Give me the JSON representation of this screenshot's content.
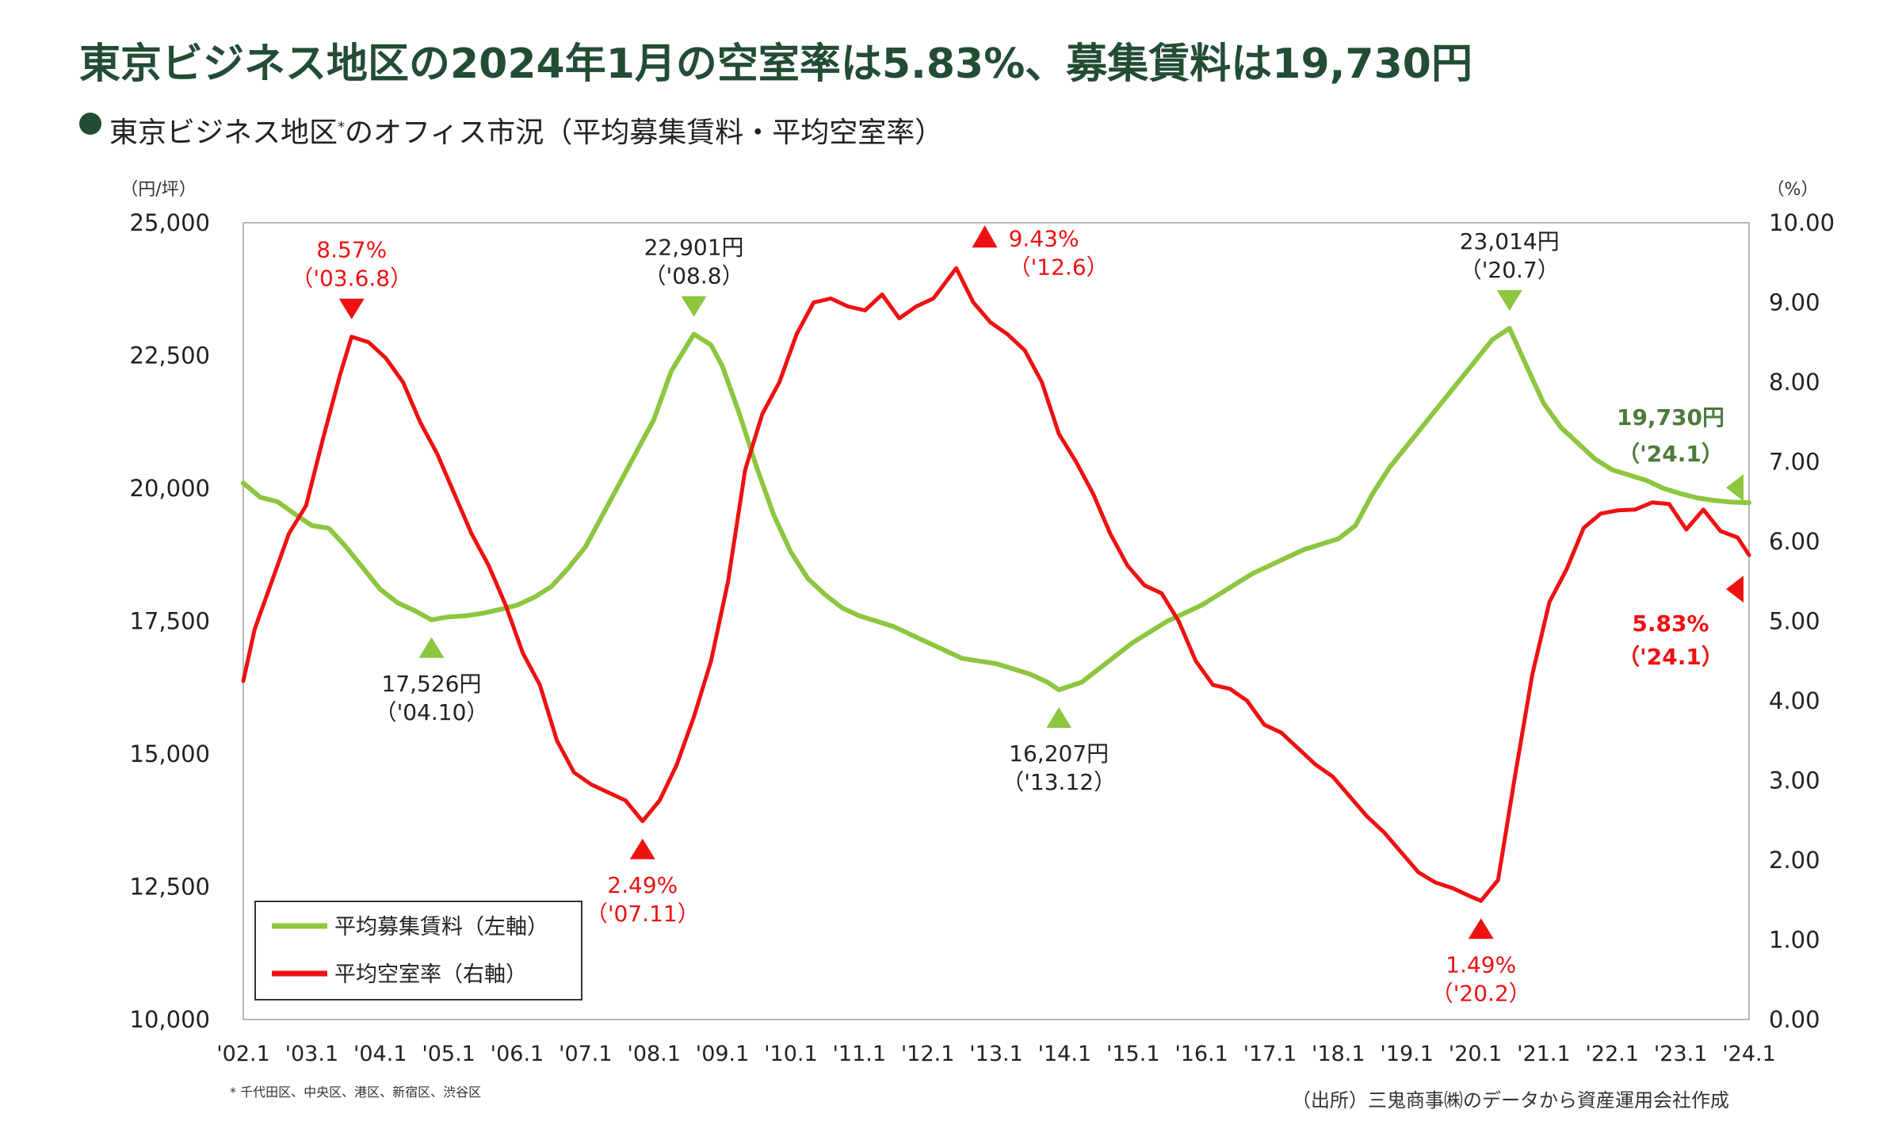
{
  "header": {
    "title": "東京ビジネス地区の2024年1月の空室率は5.83%、募集賃料は19,730円",
    "subtitle_pre": "東京ビジネス地区",
    "subtitle_mark": "*",
    "subtitle_post": "のオフィス市況（平均募集賃料・平均空室率）"
  },
  "footnote": "* 千代田区、中央区、港区、新宿区、渋谷区",
  "source": "（出所）三鬼商事㈱のデータから資産運用会社作成",
  "colors": {
    "rent": "#8dc63f",
    "vacancy": "#ee1111",
    "title": "#234c34",
    "rent_label": "#4e7a3a"
  },
  "chart_data": {
    "type": "line",
    "left_unit": "（円/坪）",
    "right_unit": "（%）",
    "ylim_left": [
      10000,
      25000
    ],
    "ylim_right": [
      0,
      10
    ],
    "left_ticks": [
      "25,000",
      "22,500",
      "20,000",
      "17,500",
      "15,000",
      "12,500",
      "10,000"
    ],
    "right_ticks": [
      "10.00",
      "9.00",
      "8.00",
      "7.00",
      "6.00",
      "5.00",
      "4.00",
      "3.00",
      "2.00",
      "1.00",
      "0.00"
    ],
    "x_range": [
      "2002-01",
      "2024-01"
    ],
    "x_ticks": [
      "'02.1",
      "'03.1",
      "'04.1",
      "'05.1",
      "'06.1",
      "'07.1",
      "'08.1",
      "'09.1",
      "'10.1",
      "'11.1",
      "'12.1",
      "'13.1",
      "'14.1",
      "'15.1",
      "'16.1",
      "'17.1",
      "'18.1",
      "'19.1",
      "'20.1",
      "'21.1",
      "'22.1",
      "'23.1",
      "'24.1"
    ],
    "legend": [
      {
        "label": "平均募集賃料（左軸）"
      },
      {
        "label": "平均空室率（右軸）"
      }
    ],
    "series": [
      {
        "name": "平均募集賃料（左軸）",
        "axis": "left",
        "points": [
          [
            "2002-01",
            20100
          ],
          [
            "2002-04",
            19830
          ],
          [
            "2002-07",
            19750
          ],
          [
            "2002-10",
            19520
          ],
          [
            "2003-01",
            19300
          ],
          [
            "2003-04",
            19250
          ],
          [
            "2003-07",
            18900
          ],
          [
            "2003-10",
            18500
          ],
          [
            "2004-01",
            18100
          ],
          [
            "2004-04",
            17850
          ],
          [
            "2004-07",
            17700
          ],
          [
            "2004-10",
            17526
          ],
          [
            "2005-01",
            17580
          ],
          [
            "2005-04",
            17600
          ],
          [
            "2005-07",
            17650
          ],
          [
            "2005-10",
            17720
          ],
          [
            "2006-01",
            17800
          ],
          [
            "2006-04",
            17950
          ],
          [
            "2006-07",
            18150
          ],
          [
            "2006-10",
            18500
          ],
          [
            "2007-01",
            18900
          ],
          [
            "2007-04",
            19500
          ],
          [
            "2007-07",
            20100
          ],
          [
            "2007-10",
            20700
          ],
          [
            "2008-01",
            21300
          ],
          [
            "2008-04",
            22200
          ],
          [
            "2008-08",
            22901
          ],
          [
            "2008-11",
            22700
          ],
          [
            "2009-01",
            22300
          ],
          [
            "2009-04",
            21400
          ],
          [
            "2009-07",
            20400
          ],
          [
            "2009-10",
            19500
          ],
          [
            "2010-01",
            18800
          ],
          [
            "2010-04",
            18300
          ],
          [
            "2010-07",
            18000
          ],
          [
            "2010-10",
            17750
          ],
          [
            "2011-01",
            17600
          ],
          [
            "2011-04",
            17500
          ],
          [
            "2011-07",
            17400
          ],
          [
            "2011-10",
            17250
          ],
          [
            "2012-01",
            17100
          ],
          [
            "2012-04",
            16950
          ],
          [
            "2012-07",
            16800
          ],
          [
            "2012-10",
            16750
          ],
          [
            "2013-01",
            16700
          ],
          [
            "2013-04",
            16600
          ],
          [
            "2013-07",
            16500
          ],
          [
            "2013-10",
            16350
          ],
          [
            "2013-12",
            16207
          ],
          [
            "2014-04",
            16350
          ],
          [
            "2014-07",
            16600
          ],
          [
            "2014-10",
            16850
          ],
          [
            "2015-01",
            17100
          ],
          [
            "2015-04",
            17300
          ],
          [
            "2015-07",
            17500
          ],
          [
            "2015-10",
            17650
          ],
          [
            "2016-01",
            17800
          ],
          [
            "2016-04",
            18000
          ],
          [
            "2016-07",
            18200
          ],
          [
            "2016-10",
            18400
          ],
          [
            "2017-01",
            18550
          ],
          [
            "2017-04",
            18700
          ],
          [
            "2017-07",
            18850
          ],
          [
            "2017-10",
            18950
          ],
          [
            "2018-01",
            19050
          ],
          [
            "2018-04",
            19300
          ],
          [
            "2018-07",
            19900
          ],
          [
            "2018-10",
            20400
          ],
          [
            "2019-01",
            20800
          ],
          [
            "2019-04",
            21200
          ],
          [
            "2019-07",
            21600
          ],
          [
            "2019-10",
            22000
          ],
          [
            "2020-01",
            22400
          ],
          [
            "2020-04",
            22800
          ],
          [
            "2020-07",
            23014
          ],
          [
            "2020-10",
            22300
          ],
          [
            "2021-01",
            21600
          ],
          [
            "2021-04",
            21150
          ],
          [
            "2021-07",
            20850
          ],
          [
            "2021-10",
            20550
          ],
          [
            "2022-01",
            20350
          ],
          [
            "2022-04",
            20250
          ],
          [
            "2022-07",
            20150
          ],
          [
            "2022-10",
            20000
          ],
          [
            "2023-01",
            19900
          ],
          [
            "2023-04",
            19820
          ],
          [
            "2023-07",
            19770
          ],
          [
            "2023-10",
            19740
          ],
          [
            "2024-01",
            19730
          ]
        ]
      },
      {
        "name": "平均空室率（右軸）",
        "axis": "right",
        "points": [
          [
            "2002-01",
            4.25
          ],
          [
            "2002-03",
            4.9
          ],
          [
            "2002-06",
            5.5
          ],
          [
            "2002-09",
            6.1
          ],
          [
            "2002-12",
            6.45
          ],
          [
            "2003-03",
            7.3
          ],
          [
            "2003-06",
            8.1
          ],
          [
            "2003-08",
            8.57
          ],
          [
            "2003-11",
            8.5
          ],
          [
            "2004-02",
            8.3
          ],
          [
            "2004-05",
            8.0
          ],
          [
            "2004-08",
            7.5
          ],
          [
            "2004-11",
            7.1
          ],
          [
            "2005-02",
            6.6
          ],
          [
            "2005-05",
            6.1
          ],
          [
            "2005-08",
            5.7
          ],
          [
            "2005-11",
            5.2
          ],
          [
            "2006-02",
            4.6
          ],
          [
            "2006-05",
            4.2
          ],
          [
            "2006-08",
            3.5
          ],
          [
            "2006-11",
            3.1
          ],
          [
            "2007-02",
            2.95
          ],
          [
            "2007-05",
            2.85
          ],
          [
            "2007-08",
            2.75
          ],
          [
            "2007-11",
            2.49
          ],
          [
            "2008-02",
            2.75
          ],
          [
            "2008-05",
            3.2
          ],
          [
            "2008-08",
            3.8
          ],
          [
            "2008-11",
            4.5
          ],
          [
            "2009-02",
            5.5
          ],
          [
            "2009-05",
            6.9
          ],
          [
            "2009-08",
            7.6
          ],
          [
            "2009-11",
            8.0
          ],
          [
            "2010-02",
            8.6
          ],
          [
            "2010-05",
            9.0
          ],
          [
            "2010-08",
            9.05
          ],
          [
            "2010-11",
            8.95
          ],
          [
            "2011-02",
            8.9
          ],
          [
            "2011-05",
            9.1
          ],
          [
            "2011-08",
            8.8
          ],
          [
            "2011-11",
            8.95
          ],
          [
            "2012-02",
            9.05
          ],
          [
            "2012-06",
            9.43
          ],
          [
            "2012-09",
            9.0
          ],
          [
            "2012-12",
            8.75
          ],
          [
            "2013-03",
            8.6
          ],
          [
            "2013-06",
            8.4
          ],
          [
            "2013-09",
            8.0
          ],
          [
            "2013-12",
            7.35
          ],
          [
            "2014-03",
            7.0
          ],
          [
            "2014-06",
            6.6
          ],
          [
            "2014-09",
            6.1
          ],
          [
            "2014-12",
            5.7
          ],
          [
            "2015-03",
            5.45
          ],
          [
            "2015-06",
            5.35
          ],
          [
            "2015-09",
            5.0
          ],
          [
            "2015-12",
            4.5
          ],
          [
            "2016-03",
            4.2
          ],
          [
            "2016-06",
            4.15
          ],
          [
            "2016-09",
            4.0
          ],
          [
            "2016-12",
            3.7
          ],
          [
            "2017-03",
            3.6
          ],
          [
            "2017-06",
            3.4
          ],
          [
            "2017-09",
            3.2
          ],
          [
            "2017-12",
            3.05
          ],
          [
            "2018-03",
            2.8
          ],
          [
            "2018-06",
            2.55
          ],
          [
            "2018-09",
            2.35
          ],
          [
            "2018-12",
            2.1
          ],
          [
            "2019-03",
            1.85
          ],
          [
            "2019-06",
            1.72
          ],
          [
            "2019-09",
            1.65
          ],
          [
            "2019-12",
            1.55
          ],
          [
            "2020-02",
            1.49
          ],
          [
            "2020-05",
            1.75
          ],
          [
            "2020-08",
            3.07
          ],
          [
            "2020-11",
            4.33
          ],
          [
            "2021-02",
            5.24
          ],
          [
            "2021-05",
            5.65
          ],
          [
            "2021-08",
            6.17
          ],
          [
            "2021-11",
            6.35
          ],
          [
            "2022-02",
            6.39
          ],
          [
            "2022-05",
            6.4
          ],
          [
            "2022-08",
            6.49
          ],
          [
            "2022-11",
            6.47
          ],
          [
            "2023-02",
            6.15
          ],
          [
            "2023-05",
            6.4
          ],
          [
            "2023-08",
            6.13
          ],
          [
            "2023-11",
            6.05
          ],
          [
            "2024-01",
            5.83
          ]
        ]
      }
    ],
    "annotations": [
      {
        "text": "8.57%",
        "sub": "（'03.6.8）",
        "x": "2003-08",
        "y": 8.57,
        "axis": "right",
        "dir": "down",
        "color": "red"
      },
      {
        "text": "2.49%",
        "sub": "（'07.11）",
        "x": "2007-11",
        "y": 2.49,
        "axis": "right",
        "dir": "up",
        "color": "red"
      },
      {
        "text": "9.43%",
        "sub": "（'12.6）",
        "x": "2012-06",
        "y": 9.43,
        "axis": "right",
        "dir": "up-side",
        "color": "red"
      },
      {
        "text": "1.49%",
        "sub": "（'20.2）",
        "x": "2020-02",
        "y": 1.49,
        "axis": "right",
        "dir": "up",
        "color": "red"
      },
      {
        "text": "5.83%",
        "sub": "（'24.1）",
        "x": "2024-01",
        "y": 5.83,
        "axis": "right",
        "dir": "latest",
        "color": "red"
      },
      {
        "text": "17,526円",
        "sub": "（'04.10）",
        "x": "2004-10",
        "y": 17526,
        "axis": "left",
        "dir": "up",
        "color": "black"
      },
      {
        "text": "22,901円",
        "sub": "（'08.8）",
        "x": "2008-08",
        "y": 22901,
        "axis": "left",
        "dir": "down",
        "color": "black"
      },
      {
        "text": "16,207円",
        "sub": "（'13.12）",
        "x": "2013-12",
        "y": 16207,
        "axis": "left",
        "dir": "up",
        "color": "black"
      },
      {
        "text": "23,014円",
        "sub": "（'20.7）",
        "x": "2020-07",
        "y": 23014,
        "axis": "left",
        "dir": "down",
        "color": "black"
      },
      {
        "text": "19,730円",
        "sub": "（'24.1）",
        "x": "2024-01",
        "y": 19730,
        "axis": "left",
        "dir": "latest",
        "color": "green"
      }
    ]
  }
}
